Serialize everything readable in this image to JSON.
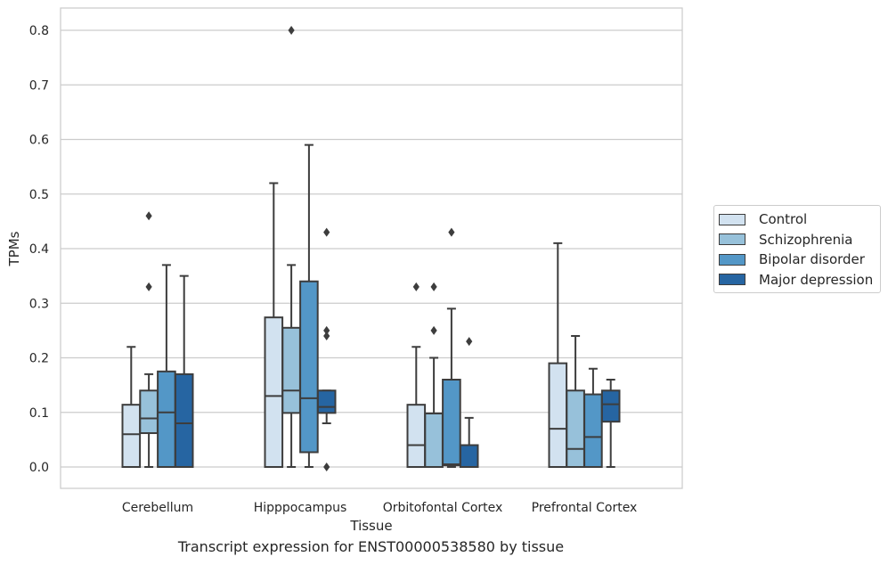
{
  "caption": "Transcript expression for ENST00000538580 by tissue",
  "chart_data": {
    "type": "box",
    "xlabel": "Tissue",
    "ylabel": "TPMs",
    "ylim": [
      -0.04,
      0.84
    ],
    "yticks": [
      "0.0",
      "0.1",
      "0.2",
      "0.3",
      "0.4",
      "0.5",
      "0.6",
      "0.7",
      "0.8"
    ],
    "grid": "horizontal",
    "legend_position": "right",
    "categories": [
      "Cerebellum",
      "Hipppocampus",
      "Orbitofontal Cortex",
      "Prefrontal Cortex"
    ],
    "series": [
      {
        "name": "Control",
        "color": "#d2e2f0",
        "boxes": [
          {
            "whislo": 0,
            "q1": 0,
            "median": 0.06,
            "q3": 0.114,
            "whishi": 0.22,
            "fliers": []
          },
          {
            "whislo": 0,
            "q1": 0,
            "median": 0.13,
            "q3": 0.274,
            "whishi": 0.52,
            "fliers": []
          },
          {
            "whislo": 0,
            "q1": 0,
            "median": 0.04,
            "q3": 0.114,
            "whishi": 0.22,
            "fliers": [
              0.33
            ]
          },
          {
            "whislo": 0,
            "q1": 0,
            "median": 0.07,
            "q3": 0.19,
            "whishi": 0.41,
            "fliers": []
          }
        ]
      },
      {
        "name": "Schizophrenia",
        "color": "#97c1da",
        "boxes": [
          {
            "whislo": 0,
            "q1": 0.062,
            "median": 0.089,
            "q3": 0.14,
            "whishi": 0.17,
            "fliers": [
              0.33,
              0.46
            ]
          },
          {
            "whislo": 0,
            "q1": 0.099,
            "median": 0.14,
            "q3": 0.255,
            "whishi": 0.37,
            "fliers": [
              0.8
            ]
          },
          {
            "whislo": 0,
            "q1": 0,
            "median": 0,
            "q3": 0.098,
            "whishi": 0.2,
            "fliers": [
              0.25,
              0.33
            ]
          },
          {
            "whislo": 0,
            "q1": 0,
            "median": 0.033,
            "q3": 0.14,
            "whishi": 0.24,
            "fliers": []
          }
        ]
      },
      {
        "name": "Bipolar disorder",
        "color": "#5397c7",
        "boxes": [
          {
            "whislo": 0,
            "q1": 0,
            "median": 0.1,
            "q3": 0.175,
            "whishi": 0.37,
            "fliers": []
          },
          {
            "whislo": 0,
            "q1": 0.027,
            "median": 0.126,
            "q3": 0.34,
            "whishi": 0.59,
            "fliers": []
          },
          {
            "whislo": 0,
            "q1": 0.003,
            "median": 0.005,
            "q3": 0.16,
            "whishi": 0.29,
            "fliers": [
              0.43
            ]
          },
          {
            "whislo": 0,
            "q1": 0,
            "median": 0.055,
            "q3": 0.133,
            "whishi": 0.18,
            "fliers": []
          }
        ]
      },
      {
        "name": "Major depression",
        "color": "#2665a2",
        "boxes": [
          {
            "whislo": 0,
            "q1": 0,
            "median": 0.08,
            "q3": 0.17,
            "whishi": 0.35,
            "fliers": []
          },
          {
            "whislo": 0.08,
            "q1": 0.099,
            "median": 0.11,
            "q3": 0.14,
            "whishi": 0.14,
            "fliers": [
              0,
              0.24,
              0.25,
              0.43
            ]
          },
          {
            "whislo": 0,
            "q1": 0,
            "median": 0,
            "q3": 0.04,
            "whishi": 0.09,
            "fliers": [
              0.23
            ]
          },
          {
            "whislo": 0,
            "q1": 0.083,
            "median": 0.115,
            "q3": 0.14,
            "whishi": 0.16,
            "fliers": []
          }
        ]
      }
    ]
  }
}
